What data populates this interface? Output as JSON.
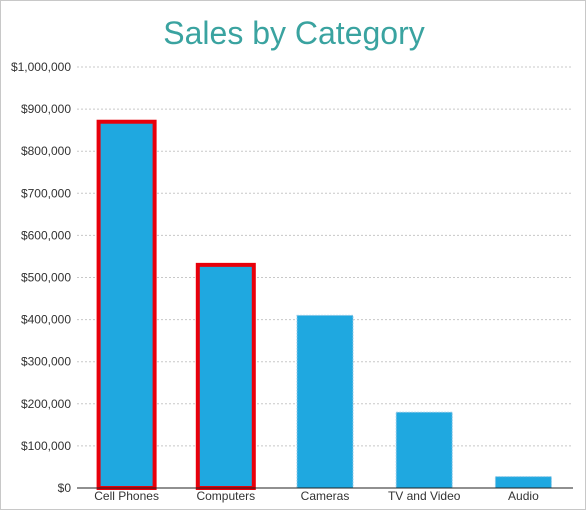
{
  "chart_data": {
    "type": "bar",
    "title": "Sales by Category",
    "xlabel": "",
    "ylabel": "",
    "categories": [
      "Cell Phones",
      "Computers",
      "Cameras",
      "TV and Video",
      "Audio"
    ],
    "values": [
      870000,
      530000,
      410000,
      180000,
      27000
    ],
    "highlighted": [
      true,
      true,
      false,
      false,
      false
    ],
    "ylim": [
      0,
      1000000
    ],
    "yticks": [
      0,
      100000,
      200000,
      300000,
      400000,
      500000,
      600000,
      700000,
      800000,
      900000,
      1000000
    ],
    "ytick_labels": [
      "$0",
      "$100,000",
      "$200,000",
      "$300,000",
      "$400,000",
      "$500,000",
      "$600,000",
      "$700,000",
      "$800,000",
      "$900,000",
      "$1,000,000"
    ],
    "grid": true,
    "colors": {
      "bar": "#1fa8e0",
      "highlight_border": "#e8000b",
      "title": "#3aa3a0",
      "grid": "#c8c8c8",
      "axis": "#222222"
    }
  }
}
